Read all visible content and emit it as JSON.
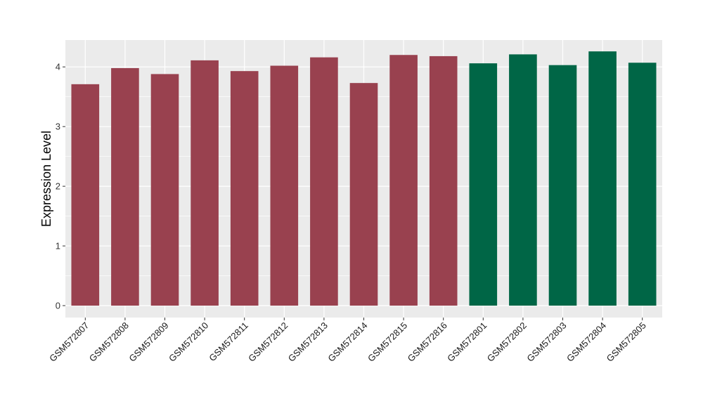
{
  "chart_data": {
    "type": "bar",
    "title": "",
    "xlabel": "",
    "ylabel": "Expression Level",
    "categories": [
      "GSM572807",
      "GSM572808",
      "GSM572809",
      "GSM572810",
      "GSM572811",
      "GSM572812",
      "GSM572813",
      "GSM572814",
      "GSM572815",
      "GSM572816",
      "GSM572801",
      "GSM572802",
      "GSM572803",
      "GSM572804",
      "GSM572805"
    ],
    "values": [
      3.71,
      3.98,
      3.88,
      4.11,
      3.93,
      4.02,
      4.16,
      3.73,
      4.2,
      4.18,
      4.06,
      4.21,
      4.03,
      4.26,
      4.07
    ],
    "group": [
      "a",
      "a",
      "a",
      "a",
      "a",
      "a",
      "a",
      "a",
      "a",
      "a",
      "b",
      "b",
      "b",
      "b",
      "b"
    ],
    "colors": {
      "a": "#99414F",
      "b": "#006646"
    },
    "ylim": [
      -0.2,
      4.45
    ],
    "yticks": [
      0,
      1,
      2,
      3,
      4
    ],
    "grid": true,
    "legend": "none",
    "panel_background": "#EBEBEB",
    "grid_color": "#FFFFFF"
  }
}
